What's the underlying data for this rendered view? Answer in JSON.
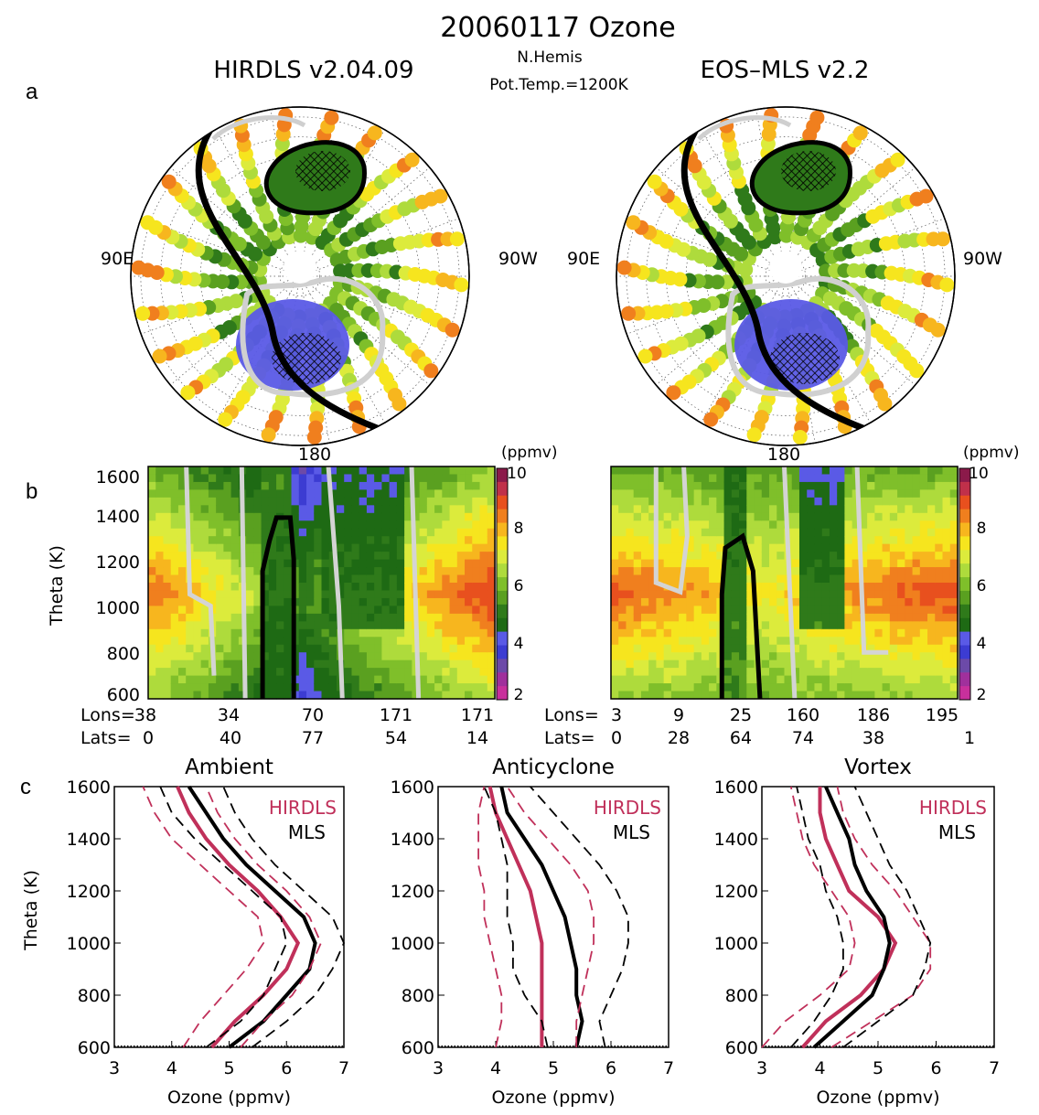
{
  "title": "20060117 Ozone",
  "panel_letters": {
    "a": "a",
    "b": "b",
    "c": "c"
  },
  "maps": {
    "left_title": "HIRDLS v2.04.09",
    "right_title": "EOS–MLS v2.2",
    "center_line1": "N.Hemis",
    "center_line2": "Pot.Temp.=1200K",
    "left_lon_label": "90E",
    "right_lon_label": "90W"
  },
  "cross_sections": {
    "top_label": "180",
    "ylabel": "Theta (K)",
    "yticks": [
      "1600",
      "1400",
      "1200",
      "1000",
      "800",
      "600"
    ],
    "colorbar_unit": "(ppmv)",
    "colorbar_ticks": [
      "10",
      "8",
      "6",
      "4",
      "2"
    ],
    "colors": [
      "#8b1a4a",
      "#c0304a",
      "#e8501e",
      "#f07f1e",
      "#f7b61e",
      "#f6e51e",
      "#dceb3c",
      "#aedb3c",
      "#7fbf2a",
      "#5aa020",
      "#2f7a1a",
      "#1e6a14",
      "#5a5ae6",
      "#3c3cd2",
      "#6c4aa8",
      "#a0309c",
      "#c8309c"
    ],
    "lons_prefix": "Lons=",
    "lats_prefix": "Lats=",
    "left_lons": [
      "38",
      "34",
      "70",
      "171",
      "171"
    ],
    "left_lats": [
      "0",
      "40",
      "77",
      "54",
      "14"
    ],
    "right_lons": [
      "3",
      "9",
      "25",
      "160",
      "186",
      "195"
    ],
    "right_lats": [
      "0",
      "28",
      "64",
      "74",
      "38",
      "1"
    ]
  },
  "chart_data": [
    {
      "type": "line",
      "title": "Ambient",
      "xlabel": "Ozone (ppmv)",
      "ylabel": "Theta (K)",
      "xlim": [
        3,
        7
      ],
      "ylim": [
        600,
        1600
      ],
      "xticks": [
        "3",
        "4",
        "5",
        "6",
        "7"
      ],
      "yticks": [
        "1600",
        "1400",
        "1200",
        "1000",
        "800",
        "600"
      ],
      "legend": [
        "HIRDLS",
        "MLS"
      ],
      "series": [
        {
          "name": "HIRDLS",
          "style": "solid",
          "color": "#c0305a",
          "theta": [
            600,
            700,
            800,
            900,
            1000,
            1100,
            1200,
            1300,
            1400,
            1500,
            1600
          ],
          "ozone": [
            4.7,
            5.1,
            5.6,
            6.0,
            6.2,
            5.9,
            5.5,
            5.0,
            4.6,
            4.3,
            4.1
          ]
        },
        {
          "name": "MLS",
          "style": "solid",
          "color": "#000000",
          "theta": [
            600,
            700,
            800,
            900,
            1000,
            1100,
            1200,
            1300,
            1400,
            1500,
            1600
          ],
          "ozone": [
            5.0,
            5.6,
            6.0,
            6.4,
            6.5,
            6.3,
            5.8,
            5.3,
            4.9,
            4.6,
            4.3
          ]
        },
        {
          "name": "HIRDLS -1sd",
          "style": "dashed",
          "color": "#c0305a",
          "theta": [
            600,
            700,
            800,
            900,
            1000,
            1100,
            1200,
            1300,
            1400,
            1500,
            1600
          ],
          "ozone": [
            4.2,
            4.5,
            4.9,
            5.3,
            5.6,
            5.5,
            5.0,
            4.5,
            4.0,
            3.7,
            3.5
          ]
        },
        {
          "name": "HIRDLS +1sd",
          "style": "dashed",
          "color": "#c0305a",
          "theta": [
            600,
            700,
            800,
            900,
            1000,
            1100,
            1200,
            1300,
            1400,
            1500,
            1600
          ],
          "ozone": [
            5.2,
            5.6,
            6.1,
            6.4,
            6.6,
            6.4,
            6.0,
            5.5,
            5.1,
            4.8,
            4.6
          ]
        },
        {
          "name": "MLS -1sd",
          "style": "dashed",
          "color": "#000000",
          "theta": [
            600,
            700,
            800,
            900,
            1000,
            1100,
            1200,
            1300,
            1400,
            1500,
            1600
          ],
          "ozone": [
            4.6,
            5.2,
            5.6,
            5.8,
            6.0,
            5.9,
            5.4,
            4.9,
            4.4,
            4.0,
            3.8
          ]
        },
        {
          "name": "MLS +1sd",
          "style": "dashed",
          "color": "#000000",
          "theta": [
            600,
            700,
            800,
            900,
            1000,
            1100,
            1200,
            1300,
            1400,
            1500,
            1600
          ],
          "ozone": [
            5.4,
            6.0,
            6.5,
            6.8,
            7.0,
            6.8,
            6.3,
            5.8,
            5.4,
            5.1,
            4.9
          ]
        }
      ]
    },
    {
      "type": "line",
      "title": "Anticyclone",
      "xlabel": "Ozone (ppmv)",
      "ylabel": "",
      "xlim": [
        3,
        7
      ],
      "ylim": [
        600,
        1600
      ],
      "xticks": [
        "3",
        "4",
        "5",
        "6",
        "7"
      ],
      "yticks": [
        "1600",
        "1400",
        "1200",
        "1000",
        "800",
        "600"
      ],
      "legend": [
        "HIRDLS",
        "MLS"
      ],
      "series": [
        {
          "name": "HIRDLS",
          "style": "solid",
          "color": "#c0305a",
          "theta": [
            600,
            700,
            800,
            900,
            1000,
            1100,
            1200,
            1300,
            1400,
            1500,
            1600
          ],
          "ozone": [
            4.8,
            4.8,
            4.8,
            4.8,
            4.8,
            4.7,
            4.6,
            4.4,
            4.2,
            4.0,
            3.9
          ]
        },
        {
          "name": "MLS",
          "style": "solid",
          "color": "#000000",
          "theta": [
            600,
            700,
            800,
            900,
            1000,
            1100,
            1200,
            1300,
            1400,
            1500,
            1600
          ],
          "ozone": [
            5.4,
            5.5,
            5.4,
            5.4,
            5.3,
            5.2,
            5.0,
            4.8,
            4.5,
            4.2,
            4.1
          ]
        },
        {
          "name": "HIRDLS -1sd",
          "style": "dashed",
          "color": "#c0305a",
          "theta": [
            600,
            700,
            800,
            900,
            1000,
            1100,
            1200,
            1300,
            1400,
            1500,
            1600
          ],
          "ozone": [
            4.0,
            4.1,
            4.1,
            4.0,
            3.9,
            3.8,
            3.8,
            3.7,
            3.7,
            3.7,
            3.8
          ]
        },
        {
          "name": "HIRDLS +1sd",
          "style": "dashed",
          "color": "#c0305a",
          "theta": [
            600,
            700,
            800,
            900,
            1000,
            1100,
            1200,
            1300,
            1400,
            1500,
            1600
          ],
          "ozone": [
            5.4,
            5.4,
            5.5,
            5.6,
            5.7,
            5.7,
            5.6,
            5.3,
            4.9,
            4.5,
            4.2
          ]
        },
        {
          "name": "MLS -1sd",
          "style": "dashed",
          "color": "#000000",
          "theta": [
            600,
            700,
            800,
            900,
            1000,
            1100,
            1200,
            1300,
            1400,
            1500,
            1600
          ],
          "ozone": [
            4.9,
            4.8,
            4.5,
            4.3,
            4.3,
            4.2,
            4.2,
            4.2,
            4.1,
            4.0,
            3.8
          ]
        },
        {
          "name": "MLS +1sd",
          "style": "dashed",
          "color": "#000000",
          "theta": [
            600,
            700,
            800,
            900,
            1000,
            1100,
            1200,
            1300,
            1400,
            1500,
            1600
          ],
          "ozone": [
            5.9,
            5.8,
            6.0,
            6.2,
            6.3,
            6.3,
            6.1,
            5.8,
            5.4,
            5.0,
            4.6
          ]
        }
      ]
    },
    {
      "type": "line",
      "title": "Vortex",
      "xlabel": "Ozone (ppmv)",
      "ylabel": "",
      "xlim": [
        3,
        7
      ],
      "ylim": [
        600,
        1600
      ],
      "xticks": [
        "3",
        "4",
        "5",
        "6",
        "7"
      ],
      "yticks": [
        "1600",
        "1400",
        "1200",
        "1000",
        "800",
        "600"
      ],
      "legend": [
        "HIRDLS",
        "MLS"
      ],
      "series": [
        {
          "name": "HIRDLS",
          "style": "solid",
          "color": "#c0305a",
          "theta": [
            600,
            700,
            800,
            900,
            1000,
            1100,
            1200,
            1300,
            1400,
            1500,
            1600
          ],
          "ozone": [
            3.7,
            4.1,
            4.7,
            5.1,
            5.3,
            5.0,
            4.5,
            4.3,
            4.1,
            4.0,
            4.0
          ]
        },
        {
          "name": "MLS",
          "style": "solid",
          "color": "#000000",
          "theta": [
            600,
            700,
            800,
            900,
            1000,
            1100,
            1200,
            1300,
            1400,
            1500,
            1600
          ],
          "ozone": [
            3.9,
            4.4,
            4.9,
            5.1,
            5.2,
            5.1,
            4.8,
            4.6,
            4.5,
            4.3,
            4.1
          ]
        },
        {
          "name": "HIRDLS -1sd",
          "style": "dashed",
          "color": "#c0305a",
          "theta": [
            600,
            700,
            800,
            900,
            1000,
            1100,
            1200,
            1300,
            1400,
            1500,
            1600
          ],
          "ozone": [
            3.0,
            3.4,
            4.0,
            4.5,
            4.6,
            4.5,
            4.2,
            3.9,
            3.7,
            3.6,
            3.5
          ]
        },
        {
          "name": "HIRDLS +1sd",
          "style": "dashed",
          "color": "#c0305a",
          "theta": [
            600,
            700,
            800,
            900,
            1000,
            1100,
            1200,
            1300,
            1400,
            1500,
            1600
          ],
          "ozone": [
            4.2,
            4.9,
            5.6,
            5.9,
            5.9,
            5.6,
            5.3,
            4.9,
            4.6,
            4.4,
            4.3
          ]
        },
        {
          "name": "MLS -1sd",
          "style": "dashed",
          "color": "#000000",
          "theta": [
            600,
            700,
            800,
            900,
            1000,
            1100,
            1200,
            1300,
            1400,
            1500,
            1600
          ],
          "ozone": [
            3.5,
            3.9,
            4.2,
            4.4,
            4.4,
            4.3,
            4.1,
            4.0,
            3.8,
            3.7,
            3.6
          ]
        },
        {
          "name": "MLS +1sd",
          "style": "dashed",
          "color": "#000000",
          "theta": [
            600,
            700,
            800,
            900,
            1000,
            1100,
            1200,
            1300,
            1400,
            1500,
            1600
          ],
          "ozone": [
            4.4,
            5.0,
            5.6,
            5.8,
            5.9,
            5.7,
            5.5,
            5.2,
            5.0,
            4.8,
            4.6
          ]
        }
      ]
    }
  ]
}
